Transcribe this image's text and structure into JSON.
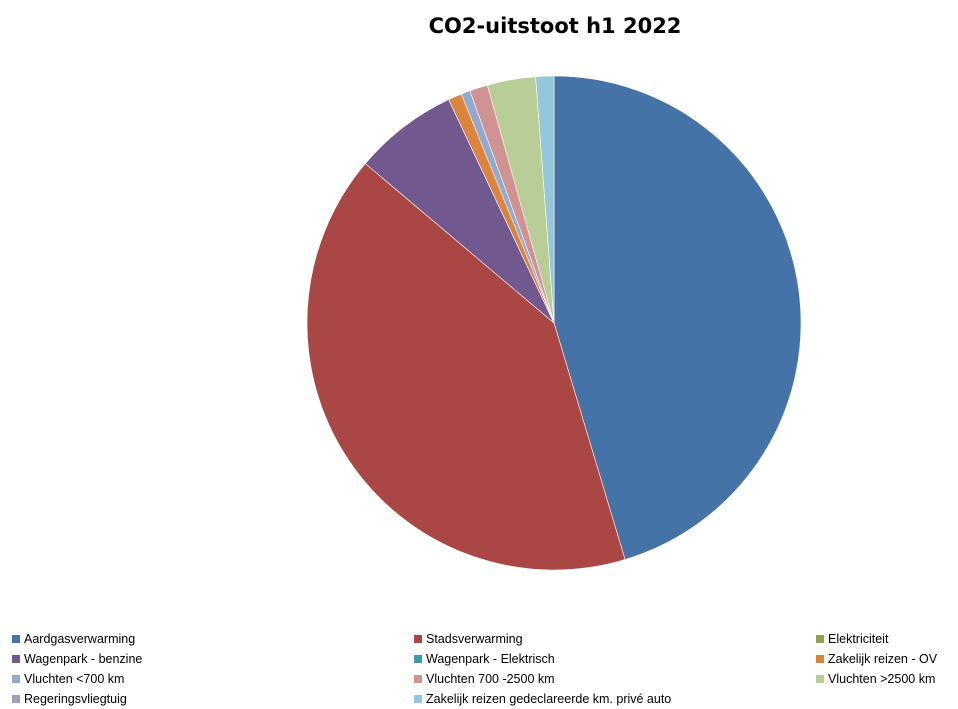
{
  "chart_data": {
    "type": "pie",
    "title": "CO2-uitstoot h1 2022",
    "legend_position": "bottom",
    "slices": [
      {
        "name": "Aardgasverwarming",
        "value": 45.9,
        "color": "#4572A7"
      },
      {
        "name": "Stadsverwarming",
        "value": 41.3,
        "color": "#AA4643"
      },
      {
        "name": "Elektriciteit",
        "value": 0.0,
        "color": "#89A54E"
      },
      {
        "name": "Wagenpark - benzine",
        "value": 6.9,
        "color": "#71588F"
      },
      {
        "name": "Wagenpark - Elektrisch",
        "value": 0.0,
        "color": "#4198AF"
      },
      {
        "name": "Zakelijk reizen - OV",
        "value": 0.9,
        "color": "#DB843D"
      },
      {
        "name": "Vluchten <700 km",
        "value": 0.6,
        "color": "#93A9CF"
      },
      {
        "name": "Vluchten 700 -2500 km",
        "value": 1.2,
        "color": "#D19392"
      },
      {
        "name": "Vluchten >2500 km",
        "value": 3.2,
        "color": "#B9CD96"
      },
      {
        "name": "Regeringsvliegtuig",
        "value": 0.0,
        "color": "#A99BBD"
      },
      {
        "name": "Zakelijk reizen gedeclareerde km. privé auto",
        "value": 1.2,
        "color": "#92C8D9"
      }
    ]
  }
}
